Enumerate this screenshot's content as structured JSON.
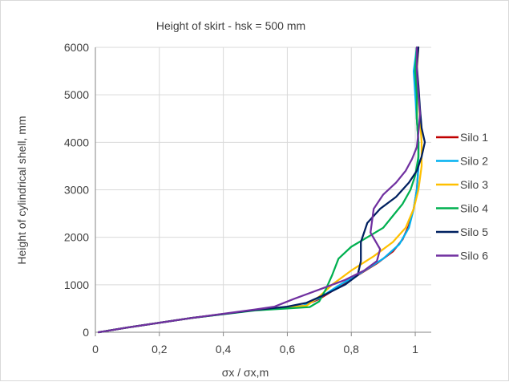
{
  "chart_data": {
    "type": "line",
    "title": "Height of skirt - hsk = 500 mm",
    "xlabel": "σx / σx,m",
    "ylabel": "Height of cylindrical shell, mm",
    "xlim": [
      0,
      1.05
    ],
    "ylim": [
      0,
      6000
    ],
    "x_ticks": [
      0,
      0.2,
      0.4,
      0.6,
      0.8,
      1
    ],
    "x_tick_labels": [
      "0",
      "0,2",
      "0,4",
      "0,6",
      "0,8",
      "1"
    ],
    "y_ticks": [
      0,
      1000,
      2000,
      3000,
      4000,
      5000,
      6000
    ],
    "y_tick_labels": [
      "0",
      "1000",
      "2000",
      "3000",
      "4000",
      "5000",
      "6000"
    ],
    "grid": "horizontal and vertical",
    "legend_position": "right",
    "series": [
      {
        "name": "Silo 1",
        "color": "#c00000",
        "points": [
          [
            0.01,
            0
          ],
          [
            0.1,
            100
          ],
          [
            0.3,
            300
          ],
          [
            0.5,
            470
          ],
          [
            0.6,
            520
          ],
          [
            0.65,
            560
          ],
          [
            0.7,
            700
          ],
          [
            0.76,
            950
          ],
          [
            0.82,
            1200
          ],
          [
            0.88,
            1450
          ],
          [
            0.93,
            1700
          ],
          [
            0.96,
            1950
          ],
          [
            0.98,
            2250
          ],
          [
            0.995,
            2600
          ],
          [
            1.005,
            3000
          ],
          [
            1.01,
            3500
          ],
          [
            1.01,
            4000
          ],
          [
            1.005,
            4500
          ],
          [
            1.005,
            5000
          ],
          [
            1.0,
            5500
          ],
          [
            1.005,
            6000
          ]
        ]
      },
      {
        "name": "Silo 2",
        "color": "#00b0f0",
        "points": [
          [
            0.01,
            0
          ],
          [
            0.1,
            100
          ],
          [
            0.3,
            300
          ],
          [
            0.5,
            470
          ],
          [
            0.6,
            520
          ],
          [
            0.65,
            560
          ],
          [
            0.7,
            720
          ],
          [
            0.76,
            980
          ],
          [
            0.83,
            1250
          ],
          [
            0.9,
            1550
          ],
          [
            0.95,
            1850
          ],
          [
            0.98,
            2200
          ],
          [
            0.995,
            2600
          ],
          [
            1.005,
            3000
          ],
          [
            1.01,
            3500
          ],
          [
            1.01,
            4000
          ],
          [
            1.005,
            4500
          ],
          [
            1.0,
            5000
          ],
          [
            0.995,
            5500
          ],
          [
            1.005,
            6000
          ]
        ]
      },
      {
        "name": "Silo 3",
        "color": "#ffc000",
        "points": [
          [
            0.01,
            0
          ],
          [
            0.1,
            100
          ],
          [
            0.3,
            300
          ],
          [
            0.5,
            470
          ],
          [
            0.6,
            520
          ],
          [
            0.66,
            560
          ],
          [
            0.7,
            750
          ],
          [
            0.74,
            1000
          ],
          [
            0.8,
            1300
          ],
          [
            0.87,
            1600
          ],
          [
            0.93,
            1900
          ],
          [
            0.97,
            2200
          ],
          [
            0.995,
            2600
          ],
          [
            1.01,
            3000
          ],
          [
            1.02,
            3500
          ],
          [
            1.02,
            4000
          ],
          [
            1.015,
            4500
          ],
          [
            1.01,
            5000
          ],
          [
            1.005,
            5500
          ],
          [
            1.01,
            6000
          ]
        ]
      },
      {
        "name": "Silo 4",
        "color": "#00b050",
        "points": [
          [
            0.01,
            0
          ],
          [
            0.1,
            100
          ],
          [
            0.3,
            300
          ],
          [
            0.5,
            460
          ],
          [
            0.6,
            500
          ],
          [
            0.67,
            530
          ],
          [
            0.7,
            650
          ],
          [
            0.72,
            900
          ],
          [
            0.74,
            1200
          ],
          [
            0.76,
            1550
          ],
          [
            0.8,
            1800
          ],
          [
            0.85,
            2000
          ],
          [
            0.9,
            2200
          ],
          [
            0.93,
            2450
          ],
          [
            0.96,
            2700
          ],
          [
            0.985,
            3000
          ],
          [
            1.0,
            3300
          ],
          [
            1.01,
            3700
          ],
          [
            1.01,
            4000
          ],
          [
            1.005,
            4500
          ],
          [
            1.005,
            5000
          ],
          [
            1.0,
            5500
          ],
          [
            1.005,
            6000
          ]
        ]
      },
      {
        "name": "Silo 5",
        "color": "#002060",
        "points": [
          [
            0.01,
            0
          ],
          [
            0.1,
            100
          ],
          [
            0.3,
            300
          ],
          [
            0.5,
            470
          ],
          [
            0.6,
            540
          ],
          [
            0.66,
            620
          ],
          [
            0.72,
            800
          ],
          [
            0.78,
            1000
          ],
          [
            0.82,
            1200
          ],
          [
            0.83,
            1500
          ],
          [
            0.83,
            1900
          ],
          [
            0.85,
            2300
          ],
          [
            0.89,
            2600
          ],
          [
            0.94,
            2850
          ],
          [
            0.98,
            3150
          ],
          [
            1.005,
            3400
          ],
          [
            1.02,
            3700
          ],
          [
            1.03,
            4000
          ],
          [
            1.02,
            4300
          ],
          [
            1.015,
            4700
          ],
          [
            1.01,
            5200
          ],
          [
            1.005,
            5600
          ],
          [
            1.01,
            6000
          ]
        ]
      },
      {
        "name": "Silo 6",
        "color": "#7030a0",
        "points": [
          [
            0.01,
            0
          ],
          [
            0.1,
            100
          ],
          [
            0.3,
            300
          ],
          [
            0.5,
            480
          ],
          [
            0.56,
            540
          ],
          [
            0.62,
            700
          ],
          [
            0.7,
            900
          ],
          [
            0.78,
            1100
          ],
          [
            0.84,
            1300
          ],
          [
            0.88,
            1500
          ],
          [
            0.89,
            1750
          ],
          [
            0.86,
            2100
          ],
          [
            0.87,
            2600
          ],
          [
            0.9,
            2900
          ],
          [
            0.94,
            3150
          ],
          [
            0.97,
            3400
          ],
          [
            0.99,
            3650
          ],
          [
            1.005,
            3900
          ],
          [
            1.01,
            4200
          ],
          [
            1.015,
            4600
          ],
          [
            1.01,
            5000
          ],
          [
            1.005,
            5500
          ],
          [
            1.005,
            6000
          ]
        ]
      }
    ]
  }
}
